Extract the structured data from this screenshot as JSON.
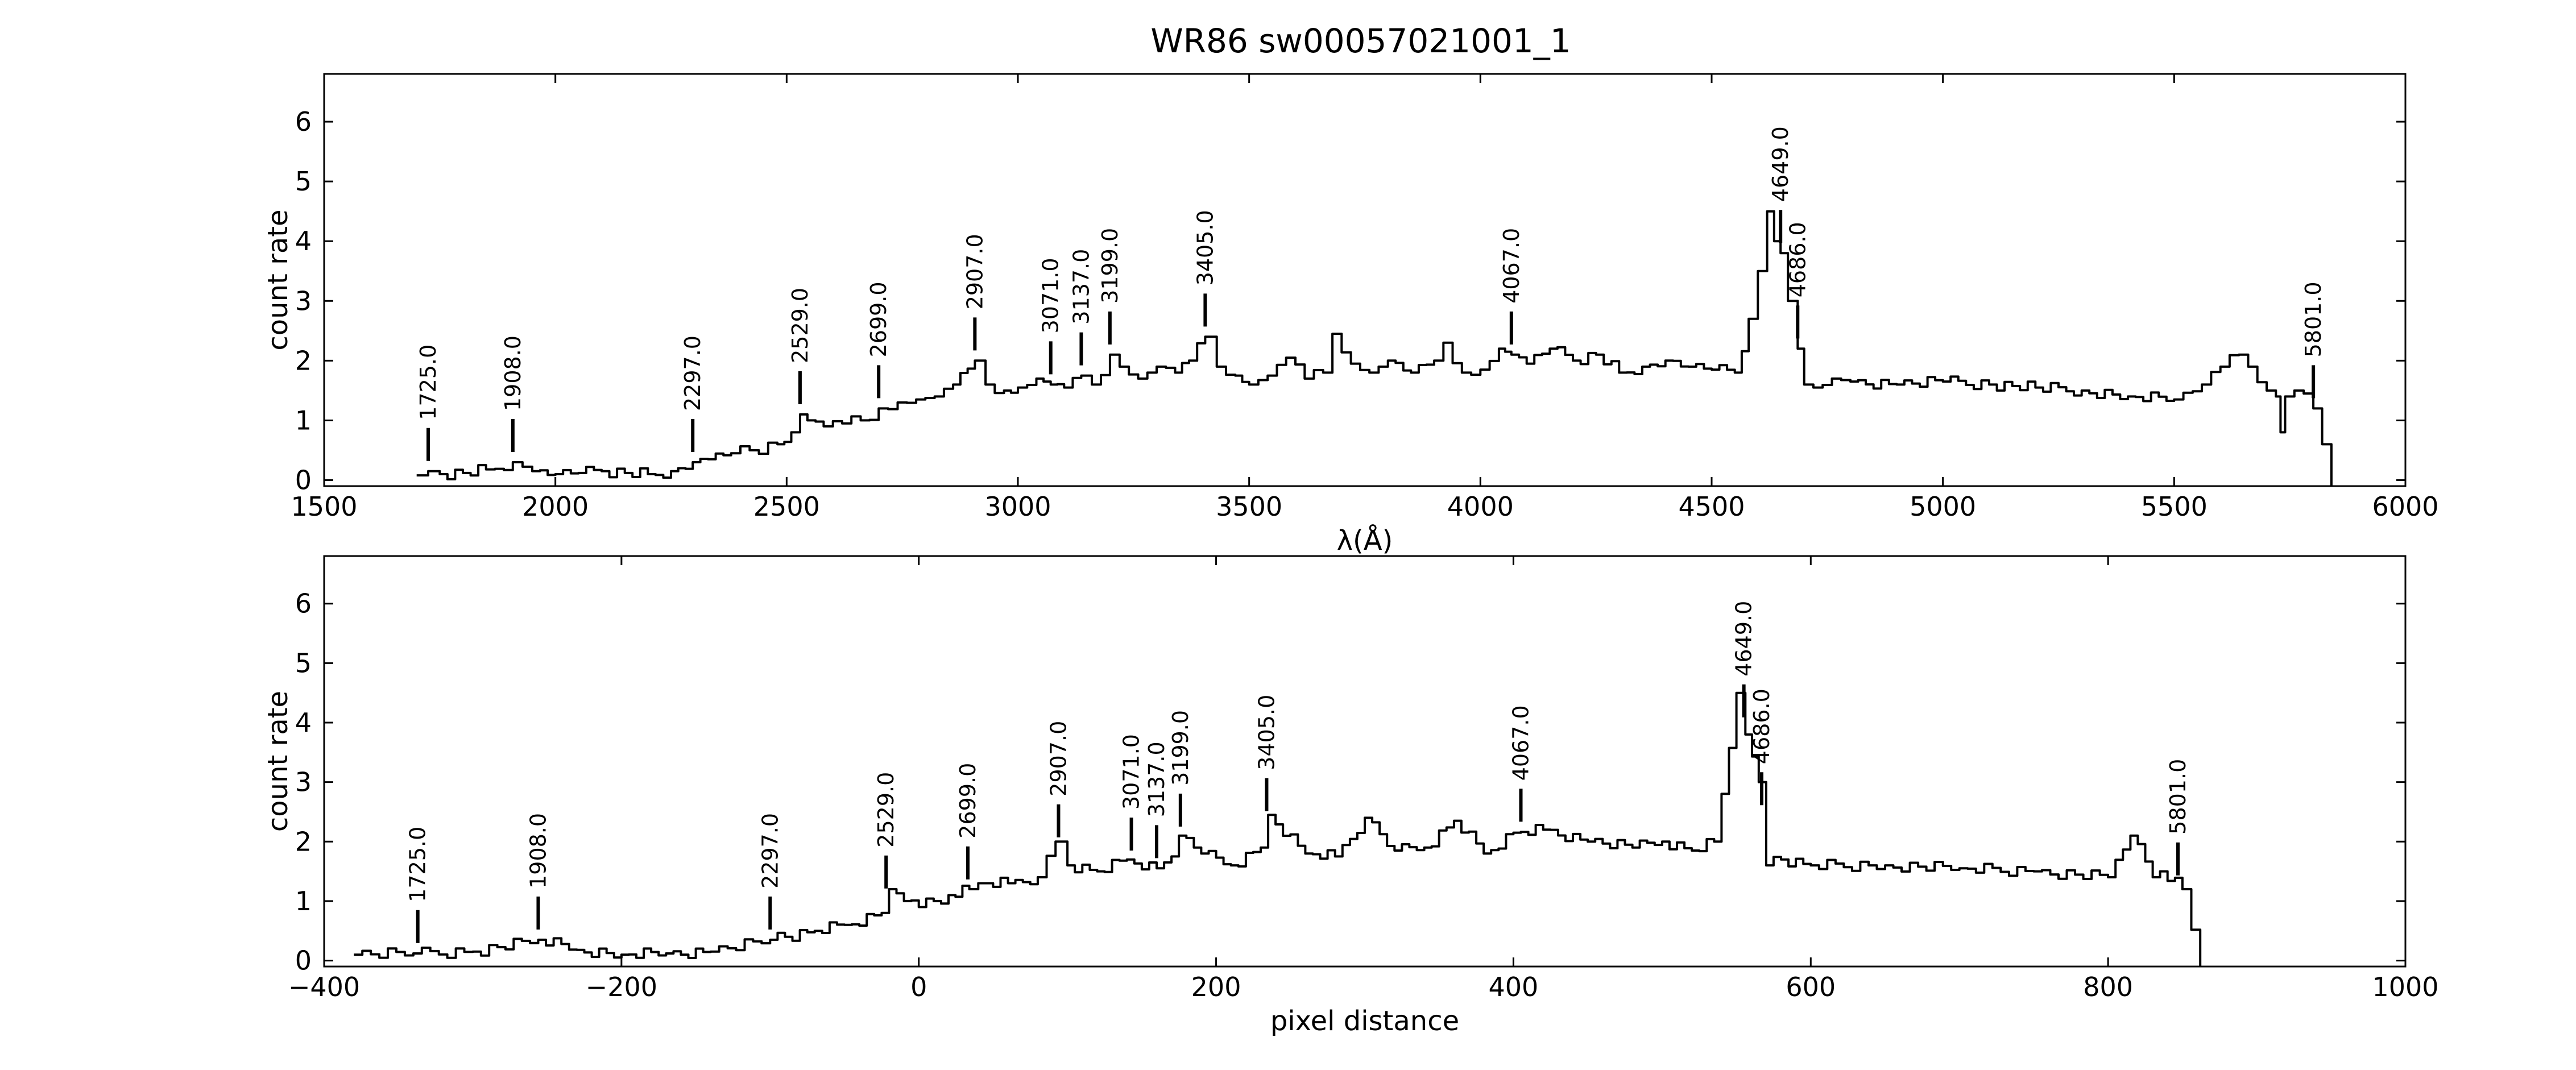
{
  "chart_data": [
    {
      "type": "line",
      "title": "WR86  sw00057021001_1",
      "xlabel": "λ(Å)",
      "ylabel": "count rate",
      "xlim": [
        1500,
        6000
      ],
      "ylim": [
        -0.1,
        6.8
      ],
      "xticks": [
        1500,
        2000,
        2500,
        3000,
        3500,
        4000,
        4500,
        5000,
        5500,
        6000
      ],
      "yticks": [
        0,
        1,
        2,
        3,
        4,
        5,
        6
      ],
      "grid": false,
      "series": [
        {
          "x": [
            1700,
            1725,
            1750,
            1800,
            1850,
            1908,
            1950,
            2000,
            2050,
            2100,
            2150,
            2200,
            2250,
            2297,
            2330,
            2380,
            2420,
            2480,
            2510,
            2529,
            2545,
            2580,
            2620,
            2660,
            2699,
            2740,
            2780,
            2820,
            2860,
            2907,
            2930,
            2970,
            3000,
            3040,
            3071,
            3100,
            3137,
            3160,
            3199,
            3220,
            3260,
            3300,
            3340,
            3370,
            3405,
            3430,
            3470,
            3500,
            3540,
            3580,
            3620,
            3660,
            3680,
            3720,
            3760,
            3800,
            3850,
            3900,
            3920,
            3960,
            4000,
            4040,
            4067,
            4100,
            4150,
            4200,
            4250,
            4300,
            4350,
            4400,
            4450,
            4500,
            4550,
            4580,
            4600,
            4620,
            4635,
            4649,
            4665,
            4686,
            4700,
            4720,
            4760,
            4800,
            4900,
            5000,
            5100,
            5200,
            5300,
            5400,
            5500,
            5560,
            5600,
            5640,
            5660,
            5700,
            5720,
            5730,
            5740,
            5760,
            5780,
            5801,
            5820,
            5840
          ],
          "y": [
            0.08,
            0.15,
            0.1,
            0.12,
            0.18,
            0.3,
            0.15,
            0.1,
            0.12,
            0.15,
            0.12,
            0.1,
            0.15,
            0.3,
            0.35,
            0.45,
            0.5,
            0.6,
            0.8,
            1.1,
            1.0,
            0.9,
            0.95,
            1.0,
            1.2,
            1.3,
            1.35,
            1.4,
            1.6,
            2.0,
            1.6,
            1.5,
            1.55,
            1.7,
            1.6,
            1.55,
            1.75,
            1.6,
            2.1,
            1.9,
            1.7,
            1.9,
            1.8,
            2.0,
            2.4,
            1.9,
            1.75,
            1.6,
            1.75,
            2.05,
            1.7,
            1.8,
            2.45,
            1.95,
            1.8,
            2.0,
            1.8,
            2.0,
            2.3,
            1.8,
            1.85,
            2.2,
            2.1,
            1.95,
            2.2,
            2.0,
            2.1,
            1.8,
            1.9,
            2.0,
            1.9,
            1.85,
            1.8,
            2.7,
            3.5,
            4.5,
            4.0,
            3.8,
            3.0,
            2.2,
            1.6,
            1.55,
            1.7,
            1.65,
            1.6,
            1.65,
            1.6,
            1.55,
            1.5,
            1.4,
            1.35,
            1.6,
            1.9,
            2.1,
            1.9,
            1.5,
            1.4,
            0.8,
            1.4,
            1.5,
            1.45,
            1.2,
            0.6,
            -0.1
          ]
        }
      ],
      "annotations": [
        {
          "x": 1725,
          "label": "1725.0"
        },
        {
          "x": 1908,
          "label": "1908.0"
        },
        {
          "x": 2297,
          "label": "2297.0"
        },
        {
          "x": 2529,
          "label": "2529.0"
        },
        {
          "x": 2699,
          "label": "2699.0"
        },
        {
          "x": 2907,
          "label": "2907.0"
        },
        {
          "x": 3071,
          "label": "3071.0"
        },
        {
          "x": 3137,
          "label": "3137.0"
        },
        {
          "x": 3199,
          "label": "3199.0"
        },
        {
          "x": 3405,
          "label": "3405.0"
        },
        {
          "x": 4067,
          "label": "4067.0"
        },
        {
          "x": 4649,
          "label": "4649.0"
        },
        {
          "x": 4686,
          "label": "4686.0"
        },
        {
          "x": 5801,
          "label": "5801.0"
        }
      ]
    },
    {
      "type": "line",
      "xlabel": "pixel distance",
      "ylabel": "count rate",
      "xlim": [
        -400,
        1000
      ],
      "ylim": [
        -0.1,
        6.8
      ],
      "xticks": [
        -400,
        -200,
        0,
        200,
        400,
        600,
        800,
        1000
      ],
      "yticks": [
        0,
        1,
        2,
        3,
        4,
        5,
        6
      ],
      "grid": false,
      "series": [
        {
          "x": [
            -380,
            -340,
            -300,
            -256,
            -230,
            -200,
            -170,
            -140,
            -100,
            -90,
            -70,
            -50,
            -25,
            -20,
            -10,
            0,
            10,
            20,
            34,
            40,
            60,
            80,
            92,
            100,
            120,
            140,
            160,
            170,
            175,
            190,
            210,
            230,
            235,
            260,
            280,
            300,
            320,
            340,
            360,
            380,
            400,
            420,
            450,
            480,
            500,
            520,
            535,
            550,
            556,
            565,
            570,
            580,
            600,
            650,
            700,
            750,
            800,
            815,
            830,
            835,
            850,
            862
          ],
          "y": [
            0.1,
            0.12,
            0.15,
            0.35,
            0.18,
            0.1,
            0.12,
            0.15,
            0.35,
            0.4,
            0.5,
            0.6,
            0.8,
            1.2,
            1.0,
            0.9,
            1.0,
            1.1,
            1.2,
            1.3,
            1.3,
            1.4,
            2.0,
            1.6,
            1.5,
            1.7,
            1.55,
            1.75,
            2.1,
            1.8,
            1.6,
            1.9,
            2.45,
            1.8,
            1.75,
            2.4,
            1.85,
            1.9,
            2.35,
            1.8,
            2.15,
            2.2,
            2.0,
            1.9,
            2.0,
            1.85,
            2.0,
            4.5,
            3.8,
            3.0,
            1.6,
            1.7,
            1.6,
            1.6,
            1.55,
            1.5,
            1.4,
            2.1,
            1.4,
            1.5,
            1.2,
            -0.1
          ]
        }
      ],
      "annotations": [
        {
          "x": -337,
          "label": "1725.0"
        },
        {
          "x": -256,
          "label": "1908.0"
        },
        {
          "x": -100,
          "label": "2297.0"
        },
        {
          "x": -22,
          "label": "2529.0"
        },
        {
          "x": 33,
          "label": "2699.0"
        },
        {
          "x": 94,
          "label": "2907.0"
        },
        {
          "x": 143,
          "label": "3071.0"
        },
        {
          "x": 160,
          "label": "3137.0"
        },
        {
          "x": 176,
          "label": "3199.0"
        },
        {
          "x": 234,
          "label": "3405.0"
        },
        {
          "x": 405,
          "label": "4067.0"
        },
        {
          "x": 555,
          "label": "4649.0"
        },
        {
          "x": 567,
          "label": "4686.0"
        },
        {
          "x": 847,
          "label": "5801.0"
        }
      ]
    }
  ]
}
